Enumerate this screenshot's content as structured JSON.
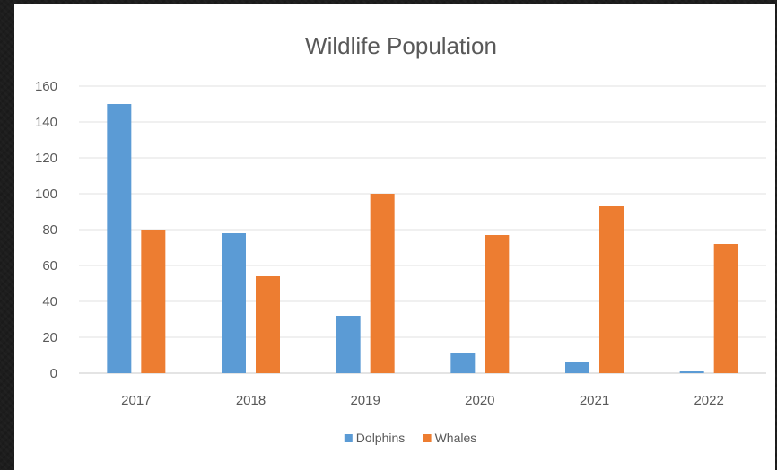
{
  "chart_data": {
    "type": "bar",
    "title": "Wildlife Population",
    "xlabel": "",
    "ylabel": "",
    "categories": [
      "2017",
      "2018",
      "2019",
      "2020",
      "2021",
      "2022"
    ],
    "series": [
      {
        "name": "Dolphins",
        "color": "#5b9bd5",
        "values": [
          150,
          78,
          32,
          11,
          6,
          1
        ]
      },
      {
        "name": "Whales",
        "color": "#ed7d31",
        "values": [
          80,
          54,
          100,
          77,
          93,
          72
        ]
      }
    ],
    "ylim": [
      0,
      160
    ],
    "yticks": [
      0,
      20,
      40,
      60,
      80,
      100,
      120,
      140,
      160
    ],
    "grid": true,
    "legend": "bottom"
  }
}
